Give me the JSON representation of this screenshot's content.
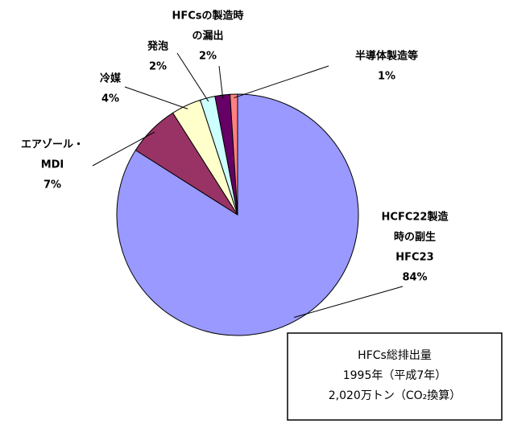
{
  "chart_data": {
    "type": "pie",
    "categories": [
      [
        "HCFC22製造",
        "時の副生",
        "HFC23"
      ],
      [
        "エアゾール・",
        "MDI"
      ],
      [
        "冷媒"
      ],
      [
        "発泡"
      ],
      [
        "HFCsの製造時",
        "の漏出"
      ],
      [
        "半導体製造等"
      ]
    ],
    "values": [
      84,
      7,
      4,
      2,
      2,
      1
    ],
    "value_labels": [
      "84%",
      "7%",
      "4%",
      "2%",
      "2%",
      "1%"
    ],
    "colors": [
      "#9999ff",
      "#993366",
      "#ffffcc",
      "#ccffff",
      "#660066",
      "#ff8080"
    ],
    "annotation": [
      "HFCs総排出量",
      "1995年（平成7年）",
      "2,020万トン（CO₂換算）"
    ]
  }
}
